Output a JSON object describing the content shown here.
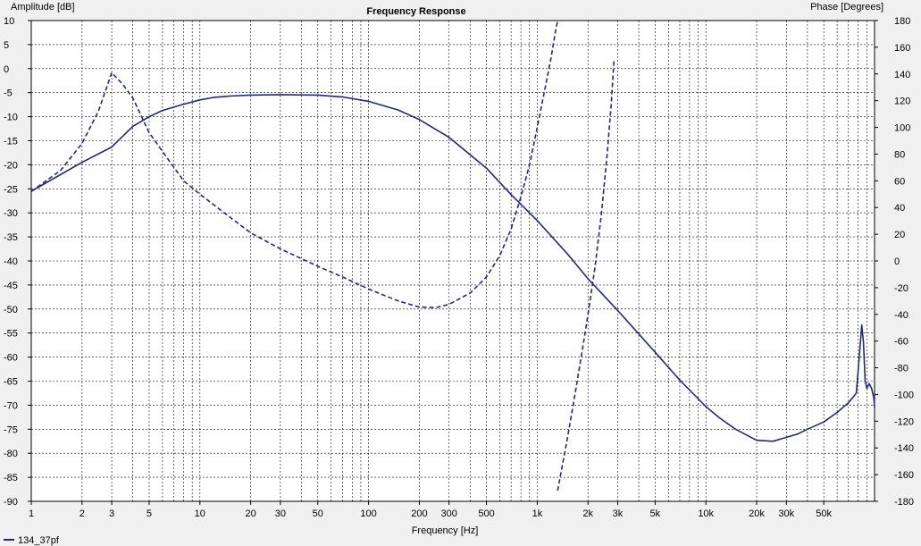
{
  "chart_data": {
    "type": "line",
    "title": "Frequency Response",
    "xlabel": "Frequency [Hz]",
    "ylabel_left": "Amplitude [dB]",
    "ylabel_right": "Phase [Degrees]",
    "x_scale": "log",
    "xlim": [
      1,
      100000
    ],
    "ylim_left": [
      -90,
      10
    ],
    "ylim_right": [
      -180,
      180
    ],
    "grid": true,
    "legend_position": "bottom-left",
    "colors": {
      "series": "#1f2a78",
      "grid": "#000000",
      "plot_bg": "#ffffff",
      "page_bg": "#f0f0f0"
    },
    "x_ticks": [
      {
        "value": 1,
        "label": "1"
      },
      {
        "value": 2,
        "label": "2"
      },
      {
        "value": 3,
        "label": "3"
      },
      {
        "value": 5,
        "label": "5"
      },
      {
        "value": 10,
        "label": "10"
      },
      {
        "value": 20,
        "label": "20"
      },
      {
        "value": 30,
        "label": "30"
      },
      {
        "value": 50,
        "label": "50"
      },
      {
        "value": 100,
        "label": "100"
      },
      {
        "value": 200,
        "label": "200"
      },
      {
        "value": 300,
        "label": "300"
      },
      {
        "value": 500,
        "label": "500"
      },
      {
        "value": 1000,
        "label": "1k"
      },
      {
        "value": 2000,
        "label": "2k"
      },
      {
        "value": 3000,
        "label": "3k"
      },
      {
        "value": 5000,
        "label": "5k"
      },
      {
        "value": 10000,
        "label": "10k"
      },
      {
        "value": 20000,
        "label": "20k"
      },
      {
        "value": 30000,
        "label": "30k"
      },
      {
        "value": 50000,
        "label": "50k"
      }
    ],
    "y_ticks_left": [
      "10",
      "5",
      "0",
      "-5",
      "-10",
      "-15",
      "-20",
      "-25",
      "-30",
      "-35",
      "-40",
      "-45",
      "-50",
      "-55",
      "-60",
      "-65",
      "-70",
      "-75",
      "-80",
      "-85",
      "-90"
    ],
    "y_ticks_right": [
      "180",
      "160",
      "140",
      "120",
      "100",
      "80",
      "60",
      "40",
      "20",
      "0",
      "-20",
      "-40",
      "-60",
      "-80",
      "-100",
      "-120",
      "-140",
      "-160",
      "-180"
    ],
    "series": [
      {
        "name": "134_37pf",
        "kind": "amplitude",
        "axis": "left",
        "style": "solid",
        "points": [
          [
            1,
            -25.5
          ],
          [
            2,
            -19.5
          ],
          [
            3,
            -16.3
          ],
          [
            4,
            -12
          ],
          [
            5,
            -10
          ],
          [
            6,
            -8.7
          ],
          [
            8,
            -7.4
          ],
          [
            10,
            -6.5
          ],
          [
            12,
            -6
          ],
          [
            15,
            -5.7
          ],
          [
            20,
            -5.5
          ],
          [
            30,
            -5.4
          ],
          [
            50,
            -5.5
          ],
          [
            70,
            -5.9
          ],
          [
            100,
            -6.8
          ],
          [
            150,
            -8.6
          ],
          [
            200,
            -10.6
          ],
          [
            300,
            -14.3
          ],
          [
            500,
            -20.7
          ],
          [
            700,
            -26.2
          ],
          [
            1000,
            -31.6
          ],
          [
            1500,
            -38.4
          ],
          [
            2000,
            -43.7
          ],
          [
            3000,
            -50.3
          ],
          [
            5000,
            -59
          ],
          [
            7000,
            -64.8
          ],
          [
            10000,
            -70.3
          ],
          [
            12000,
            -72.6
          ],
          [
            15000,
            -75
          ],
          [
            20000,
            -77.3
          ],
          [
            25000,
            -77.5
          ],
          [
            30000,
            -76.7
          ],
          [
            35000,
            -76
          ],
          [
            40000,
            -75
          ],
          [
            50000,
            -73.5
          ],
          [
            60000,
            -71.5
          ],
          [
            70000,
            -69.5
          ],
          [
            78000,
            -67.5
          ],
          [
            82000,
            -58
          ],
          [
            84000,
            -53.3
          ],
          [
            86000,
            -57
          ],
          [
            88000,
            -65
          ],
          [
            90000,
            -66.5
          ],
          [
            93000,
            -65.5
          ],
          [
            96000,
            -66.5
          ],
          [
            99000,
            -68.5
          ],
          [
            100000,
            -70.5
          ]
        ]
      },
      {
        "name": "",
        "kind": "phase",
        "axis": "right",
        "style": "dashed",
        "points": [
          [
            1,
            52
          ],
          [
            1.5,
            68
          ],
          [
            2,
            88
          ],
          [
            2.5,
            112
          ],
          [
            3,
            141
          ],
          [
            3.5,
            132
          ],
          [
            4,
            122
          ],
          [
            5,
            96
          ],
          [
            6,
            82
          ],
          [
            8,
            60
          ],
          [
            10,
            50
          ],
          [
            15,
            33
          ],
          [
            20,
            21
          ],
          [
            30,
            9
          ],
          [
            50,
            -4
          ],
          [
            70,
            -12
          ],
          [
            100,
            -21
          ],
          [
            150,
            -30
          ],
          [
            200,
            -34.5
          ],
          [
            250,
            -35
          ],
          [
            300,
            -32.5
          ],
          [
            400,
            -24
          ],
          [
            500,
            -12
          ],
          [
            600,
            4
          ],
          [
            700,
            24
          ],
          [
            800,
            48
          ],
          [
            900,
            72
          ],
          [
            1000,
            100
          ],
          [
            1100,
            126
          ],
          [
            1200,
            150
          ],
          [
            1280,
            171
          ],
          [
            1320,
            180
          ]
        ]
      },
      {
        "name": "",
        "kind": "phase-wrapped",
        "axis": "right",
        "style": "dashed",
        "points": [
          [
            1320,
            -172
          ],
          [
            1500,
            -135
          ],
          [
            1700,
            -95
          ],
          [
            1900,
            -58
          ],
          [
            2000,
            -40
          ],
          [
            2200,
            -5
          ],
          [
            2400,
            35
          ],
          [
            2600,
            80
          ],
          [
            2750,
            118
          ],
          [
            2850,
            150
          ]
        ]
      }
    ]
  }
}
